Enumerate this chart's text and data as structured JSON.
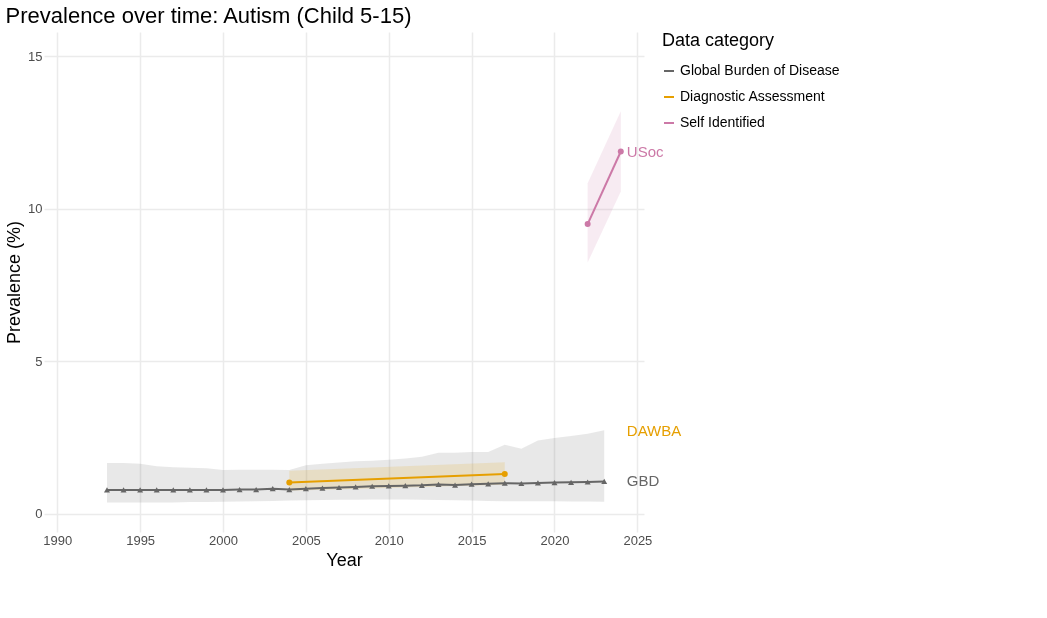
{
  "chart_data": {
    "type": "line",
    "title": "Prevalence over time: Autism (Child 5-15)",
    "xlabel": "Year",
    "ylabel": "Prevalence (%)",
    "legend_title": "Data category",
    "xlim": [
      1989.2,
      2025.4
    ],
    "xticks": [
      1990,
      1995,
      2000,
      2005,
      2010,
      2015,
      2020,
      2025
    ],
    "ylim": [
      -0.6,
      15.8
    ],
    "yticks": [
      0,
      5,
      10,
      15
    ],
    "grid": true,
    "legend": "right",
    "series": [
      {
        "name": "Global Burden of Disease",
        "color": "#666666",
        "marker": "triangle",
        "x": [
          1993,
          1994,
          1995,
          1996,
          1997,
          1998,
          1999,
          2000,
          2001,
          2002,
          2003,
          2004,
          2005,
          2006,
          2007,
          2008,
          2009,
          2010,
          2011,
          2012,
          2013,
          2014,
          2015,
          2016,
          2017,
          2018,
          2019,
          2020,
          2021,
          2022,
          2023
        ],
        "values": [
          0.78,
          0.78,
          0.78,
          0.78,
          0.78,
          0.78,
          0.78,
          0.78,
          0.79,
          0.79,
          0.82,
          0.79,
          0.82,
          0.84,
          0.86,
          0.88,
          0.9,
          0.91,
          0.92,
          0.93,
          0.96,
          0.94,
          0.97,
          0.98,
          1.0,
          0.99,
          1.01,
          1.02,
          1.03,
          1.04,
          1.06
        ],
        "lower": [
          0.37,
          0.37,
          0.37,
          0.37,
          0.37,
          0.38,
          0.38,
          0.39,
          0.4,
          0.41,
          0.42,
          0.43,
          0.44,
          0.45,
          0.46,
          0.46,
          0.47,
          0.47,
          0.47,
          0.46,
          0.45,
          0.44,
          0.43,
          0.42,
          0.41,
          0.41,
          0.41,
          0.41,
          0.4,
          0.4,
          0.39
        ],
        "upper": [
          1.66,
          1.66,
          1.64,
          1.56,
          1.52,
          1.51,
          1.49,
          1.43,
          1.44,
          1.44,
          1.44,
          1.43,
          1.59,
          1.64,
          1.68,
          1.72,
          1.74,
          1.77,
          1.81,
          1.87,
          2.0,
          2.0,
          2.02,
          2.02,
          2.26,
          2.13,
          2.4,
          2.48,
          2.55,
          2.62,
          2.74
        ]
      },
      {
        "name": "Diagnostic Assessment",
        "color": "#e69f00",
        "marker": "circle",
        "x": [
          2004,
          2017
        ],
        "values": [
          1.02,
          1.3
        ],
        "lower": [
          0.75,
          0.95
        ],
        "upper": [
          1.41,
          1.69
        ]
      },
      {
        "name": "Self Identified",
        "color": "#cc79a7",
        "marker": "circle",
        "x": [
          2022,
          2024
        ],
        "values": [
          9.5,
          11.88
        ],
        "lower": [
          8.24,
          10.57
        ],
        "upper": [
          10.84,
          13.2
        ]
      }
    ],
    "annotations": [
      "USoc",
      "DAWBA",
      "GBD"
    ]
  }
}
